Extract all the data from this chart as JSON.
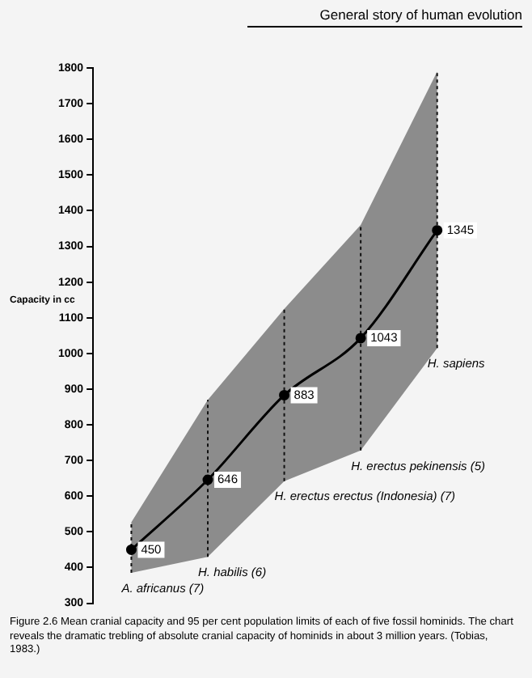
{
  "chart_data": {
    "type": "line",
    "title": "General story of human evolution",
    "ylabel": "Capacity in cc",
    "categories": [
      null,
      null,
      null,
      null,
      null
    ],
    "series": [
      {
        "color": "#000000",
        "values": [
          450,
          646,
          883,
          1043,
          1345
        ],
        "lower": [
          385,
          430,
          642,
          728,
          1015
        ],
        "upper": [
          527,
          870,
          1125,
          1360,
          1790
        ],
        "errors": [
          [
            385,
            527
          ],
          [
            430,
            870
          ],
          [
            642,
            1125
          ],
          [
            728,
            1360
          ],
          [
            1015,
            1790
          ]
        ]
      }
    ],
    "ylim": [
      300,
      1800
    ],
    "yticks": [
      300,
      400,
      500,
      600,
      700,
      800,
      900,
      1000,
      1100,
      1200,
      1300,
      1400,
      1500,
      1600,
      1700,
      1800
    ],
    "data_labels": true,
    "grid": false,
    "legend": false,
    "marker": "circle",
    "line_style": "solid",
    "annotations": [
      "A. africanus (7)",
      "H. habilis (6)",
      "H. erectus erectus (Indonesia) (7)",
      "H. erectus pekinensis (5)",
      "H. sapiens",
      "Figure 2.6 Mean cranial capacity and 95 per cent population limits of each of five fossil hominids. The chart reveals the dramatic trebling of absolute cranial capacity of hominids in about 3 million years. (Tobias, 1983.)"
    ]
  }
}
